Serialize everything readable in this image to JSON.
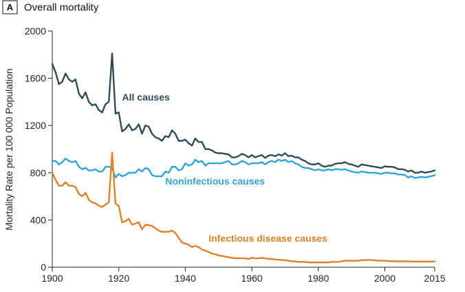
{
  "panel": {
    "letter": "A",
    "title": "Overall mortality"
  },
  "chart_data": {
    "type": "line",
    "title": "Overall mortality",
    "xlabel": "",
    "ylabel": "Mortality Rate per 100 000 Population",
    "xlim": [
      1900,
      2015
    ],
    "ylim": [
      0,
      2000
    ],
    "xticks": [
      1900,
      1920,
      1940,
      1960,
      1980,
      2000,
      2015
    ],
    "yticks": [
      0,
      400,
      800,
      1200,
      1600,
      2000
    ],
    "grid": false,
    "x": [
      1900,
      1901,
      1902,
      1903,
      1904,
      1905,
      1906,
      1907,
      1908,
      1909,
      1910,
      1911,
      1912,
      1913,
      1914,
      1915,
      1916,
      1917,
      1918,
      1919,
      1920,
      1921,
      1922,
      1923,
      1924,
      1925,
      1926,
      1927,
      1928,
      1929,
      1930,
      1931,
      1932,
      1933,
      1934,
      1935,
      1936,
      1937,
      1938,
      1939,
      1940,
      1941,
      1942,
      1943,
      1944,
      1945,
      1946,
      1947,
      1948,
      1949,
      1950,
      1951,
      1952,
      1953,
      1954,
      1955,
      1956,
      1957,
      1958,
      1959,
      1960,
      1961,
      1962,
      1963,
      1964,
      1965,
      1966,
      1967,
      1968,
      1969,
      1970,
      1971,
      1972,
      1973,
      1974,
      1975,
      1976,
      1977,
      1978,
      1979,
      1980,
      1981,
      1982,
      1983,
      1984,
      1985,
      1986,
      1987,
      1988,
      1989,
      1990,
      1991,
      1992,
      1993,
      1994,
      1995,
      1996,
      1997,
      1998,
      1999,
      2000,
      2001,
      2002,
      2003,
      2004,
      2005,
      2006,
      2007,
      2008,
      2009,
      2010,
      2011,
      2012,
      2013,
      2014,
      2015
    ],
    "series": [
      {
        "name": "All causes",
        "color": "#2e4a57",
        "values": [
          1720,
          1650,
          1550,
          1570,
          1640,
          1590,
          1570,
          1590,
          1470,
          1430,
          1480,
          1400,
          1370,
          1380,
          1330,
          1310,
          1380,
          1400,
          1810,
          1300,
          1310,
          1150,
          1170,
          1210,
          1160,
          1170,
          1210,
          1130,
          1200,
          1190,
          1130,
          1100,
          1090,
          1070,
          1110,
          1100,
          1160,
          1130,
          1070,
          1070,
          1080,
          1050,
          1030,
          1090,
          1060,
          1060,
          1000,
          1000,
          990,
          970,
          965,
          965,
          960,
          955,
          930,
          930,
          940,
          960,
          950,
          930,
          950,
          930,
          940,
          950,
          925,
          945,
          950,
          940,
          955,
          945,
          965,
          940,
          945,
          930,
          930,
          910,
          900,
          880,
          870,
          870,
          880,
          860,
          850,
          860,
          860,
          875,
          880,
          880,
          890,
          875,
          870,
          860,
          850,
          870,
          865,
          860,
          855,
          850,
          845,
          840,
          855,
          850,
          850,
          845,
          830,
          830,
          825,
          810,
          820,
          800,
          800,
          810,
          800,
          805,
          810,
          820
        ]
      },
      {
        "name": "Noninfectious causes",
        "color": "#2ea3dc",
        "values": [
          900,
          900,
          870,
          890,
          920,
          900,
          890,
          900,
          850,
          830,
          840,
          820,
          820,
          830,
          810,
          810,
          850,
          850,
          840,
          760,
          790,
          770,
          780,
          800,
          800,
          800,
          830,
          810,
          840,
          830,
          780,
          770,
          770,
          770,
          810,
          800,
          850,
          850,
          820,
          830,
          880,
          860,
          870,
          910,
          890,
          900,
          860,
          880,
          880,
          880,
          880,
          880,
          890,
          900,
          870,
          870,
          880,
          900,
          890,
          870,
          880,
          880,
          880,
          890,
          870,
          890,
          900,
          890,
          910,
          900,
          910,
          890,
          900,
          880,
          870,
          850,
          840,
          840,
          830,
          820,
          830,
          820,
          820,
          830,
          820,
          830,
          830,
          825,
          830,
          820,
          810,
          805,
          800,
          810,
          805,
          800,
          800,
          800,
          795,
          790,
          800,
          800,
          795,
          795,
          785,
          785,
          780,
          760,
          770,
          755,
          760,
          765,
          760,
          765,
          770,
          780
        ]
      },
      {
        "name": "Infectious disease causes",
        "color": "#e07f23",
        "values": [
          800,
          740,
          690,
          690,
          720,
          690,
          690,
          680,
          620,
          600,
          630,
          570,
          550,
          540,
          520,
          510,
          530,
          550,
          970,
          540,
          520,
          380,
          390,
          410,
          360,
          370,
          380,
          320,
          360,
          355,
          350,
          330,
          310,
          300,
          300,
          300,
          310,
          290,
          250,
          210,
          200,
          190,
          170,
          180,
          170,
          150,
          140,
          130,
          115,
          110,
          100,
          95,
          90,
          85,
          80,
          75,
          75,
          75,
          75,
          70,
          80,
          75,
          75,
          80,
          75,
          70,
          70,
          65,
          65,
          60,
          60,
          55,
          50,
          50,
          45,
          45,
          45,
          40,
          40,
          40,
          40,
          40,
          40,
          40,
          45,
          45,
          45,
          50,
          55,
          55,
          55,
          55,
          55,
          60,
          60,
          62,
          60,
          58,
          55,
          55,
          55,
          52,
          50,
          50,
          50,
          50,
          50,
          50,
          48,
          48,
          48,
          48,
          48,
          48,
          48,
          50
        ]
      }
    ],
    "annotations": [
      {
        "text": "All causes",
        "series": 0,
        "x": 1921,
        "y": 1410,
        "color": "#2e4a57"
      },
      {
        "text": "Noninfectious causes",
        "series": 1,
        "x": 1934,
        "y": 700,
        "color": "#2ea3dc"
      },
      {
        "text": "Infectious disease causes",
        "series": 2,
        "x": 1947,
        "y": 215,
        "color": "#e07f23"
      }
    ]
  }
}
